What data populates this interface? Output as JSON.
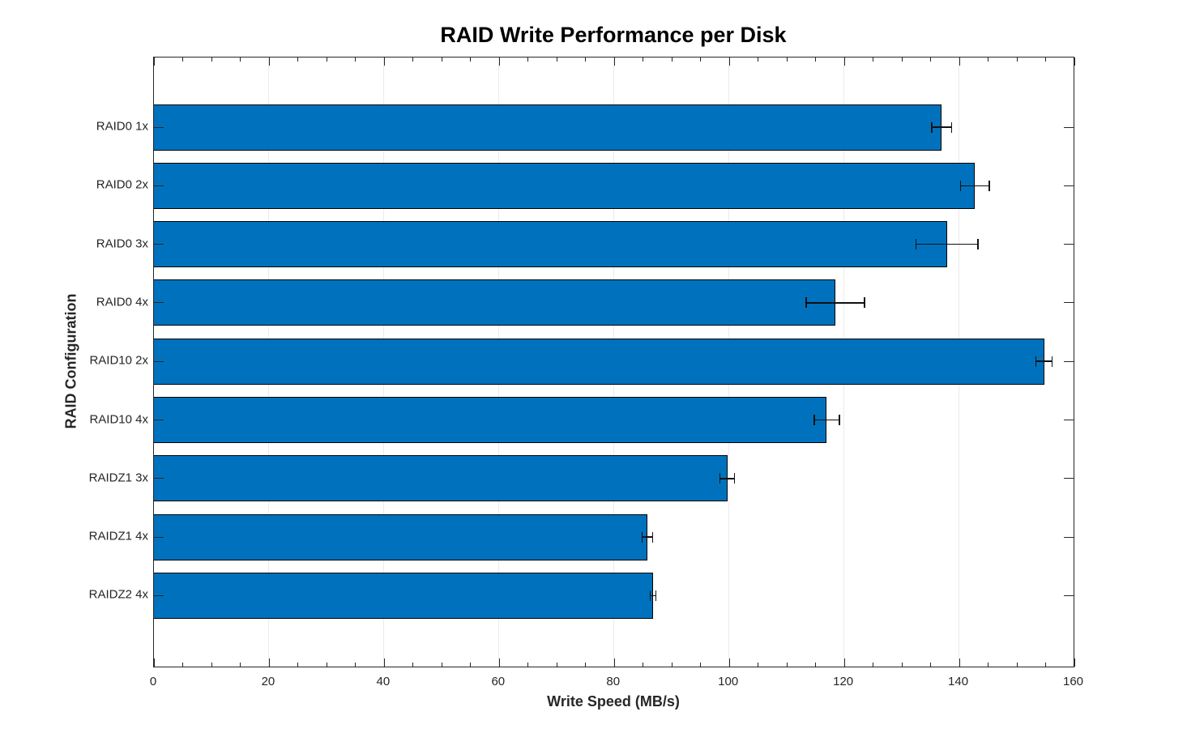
{
  "chart_data": {
    "type": "bar",
    "orientation": "horizontal",
    "title": "RAID Write Performance per Disk",
    "xlabel": "Write Speed (MB/s)",
    "ylabel": "RAID Configuration",
    "categories": [
      "RAID0 1x",
      "RAID0 2x",
      "RAID0 3x",
      "RAID0 4x",
      "RAID10 2x",
      "RAID10 4x",
      "RAIDZ1 3x",
      "RAIDZ1 4x",
      "RAIDZ2 4x"
    ],
    "series": [
      {
        "name": "Write Speed",
        "values": [
          137.0,
          142.8,
          137.9,
          118.5,
          154.8,
          117.0,
          99.7,
          85.8,
          86.8
        ],
        "errors": [
          1.8,
          2.6,
          5.5,
          5.2,
          1.5,
          2.3,
          1.4,
          1.0,
          0.6
        ]
      }
    ],
    "xlim": [
      0,
      160
    ],
    "xticks": [
      0,
      20,
      40,
      60,
      80,
      100,
      120,
      140,
      160
    ],
    "x_minor_tick_step": 5,
    "grid": "vertical-major-on",
    "legend": "none",
    "bar_color": "#0072BD",
    "bar_edge_color": "#000000",
    "error_bar_color": "#111111",
    "grid_color": "#ebebeb",
    "axis_color": "#262626",
    "tick_label_color": "#262626",
    "background_color": "#ffffff"
  }
}
